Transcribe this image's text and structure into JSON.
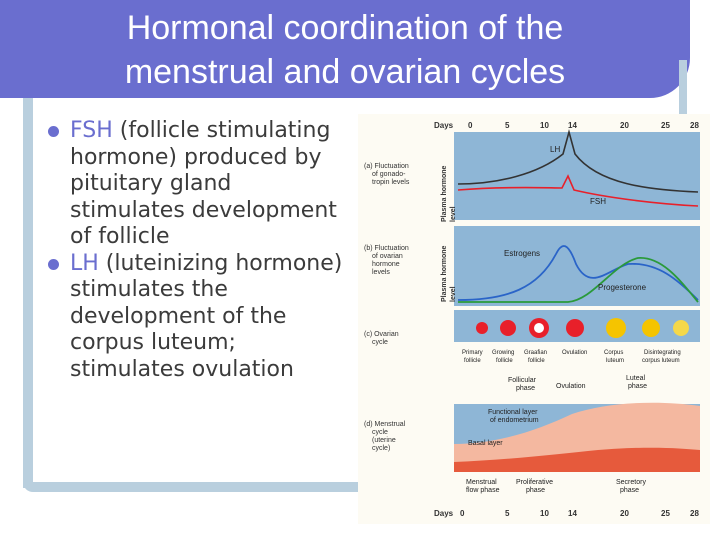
{
  "slide": {
    "title": "Hormonal coordination of the menstrual and ovarian cycles",
    "bullets": [
      {
        "term": "FSH",
        "text": " (follicle stimulating hormone) produced by pituitary gland stimulates development of follicle"
      },
      {
        "term": "LH",
        "text": " (luteinizing hormone) stimulates the development of the corpus luteum; stimulates ovulation"
      }
    ]
  },
  "figure": {
    "days_label": "Days",
    "day_ticks": [
      "0",
      "5",
      "10",
      "14",
      "20",
      "25",
      "28"
    ],
    "panels": {
      "a": {
        "label_lines": [
          "(a) Fluctuation",
          "of gonado-",
          "tropin levels"
        ],
        "axis": [
          "Plasma hormone",
          "level"
        ],
        "curves": [
          "LH",
          "FSH"
        ]
      },
      "b": {
        "label_lines": [
          "(b) Fluctuation",
          "of ovarian",
          "hormone",
          "levels"
        ],
        "axis": [
          "Plasma hormone",
          "level"
        ],
        "curves": [
          "Estrogens",
          "Progesterone"
        ]
      },
      "c": {
        "label_lines": [
          "(c) Ovarian",
          "cycle"
        ],
        "stages": [
          "Primary",
          "follicle",
          "Growing",
          "follicle",
          "Graafian",
          "follicle",
          "Ovulation",
          "Corpus",
          "luteum",
          "Disintegrating",
          "corpus luteum"
        ],
        "phases": [
          "Follicular",
          "phase",
          "Ovulation",
          "Luteal",
          "phase"
        ]
      },
      "d": {
        "label_lines": [
          "(d) Menstrual",
          "cycle",
          "(uterine",
          "cycle)"
        ],
        "layers": [
          "Functional layer",
          "of endometrium",
          "Basal layer"
        ],
        "phases": [
          "Menstrual",
          "flow phase",
          "Proliferative",
          "phase",
          "Secretory",
          "phase"
        ]
      }
    },
    "colors": {
      "lh": "#e8202a",
      "fsh": "#e8202a",
      "estrogens": "#2a64c8",
      "progesterone": "#2a9a3a",
      "panel_bg": "#8eb6d6",
      "endometrium": "#e65a3c"
    }
  }
}
